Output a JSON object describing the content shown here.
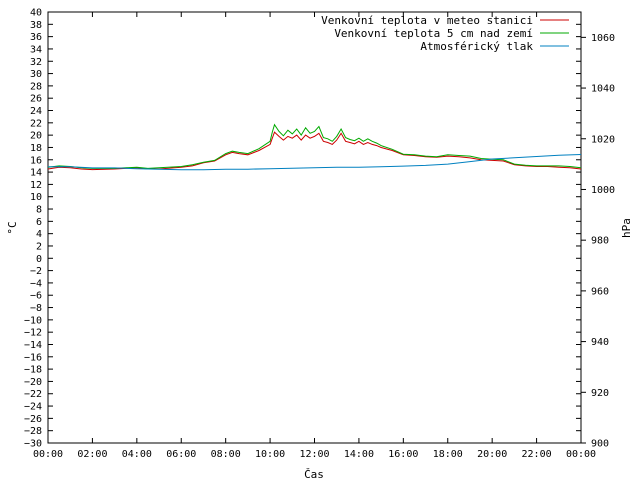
{
  "chart_data": {
    "type": "line",
    "title": "",
    "xlabel": "Čas",
    "ylabel": "°C",
    "y2label": "hPa",
    "x_ticks": [
      "00:00",
      "02:00",
      "04:00",
      "06:00",
      "08:00",
      "10:00",
      "12:00",
      "14:00",
      "16:00",
      "18:00",
      "20:00",
      "22:00",
      "00:00"
    ],
    "xlim_hours": [
      0,
      24
    ],
    "ylim": [
      -30,
      40
    ],
    "y_tick_step": 2,
    "y2lim": [
      900,
      1070
    ],
    "y2_ticks": [
      900,
      920,
      940,
      960,
      980,
      1000,
      1020,
      1040,
      1060
    ],
    "grid": false,
    "legend_position": "top-right",
    "series": [
      {
        "name": "Venkovní teplota v meteo stanici",
        "color": "#cc0000",
        "axis": "left",
        "x": [
          0,
          0.5,
          1,
          1.5,
          2,
          3,
          4,
          4.5,
          5,
          6,
          6.5,
          7,
          7.5,
          8,
          8.3,
          8.6,
          9,
          9.5,
          10,
          10.1,
          10.2,
          10.4,
          10.6,
          10.8,
          11,
          11.2,
          11.4,
          11.6,
          11.8,
          12,
          12.2,
          12.4,
          12.6,
          12.8,
          13,
          13.2,
          13.4,
          13.6,
          13.8,
          14,
          14.2,
          14.4,
          14.6,
          14.8,
          15,
          15.5,
          16,
          16.5,
          17,
          17.5,
          18,
          18.5,
          19,
          19.5,
          20,
          20.5,
          21,
          21.5,
          22,
          22.5,
          23,
          23.5,
          24
        ],
        "y": [
          14.5,
          14.8,
          14.7,
          14.5,
          14.4,
          14.5,
          14.7,
          14.5,
          14.5,
          14.8,
          15.0,
          15.5,
          15.8,
          16.8,
          17.2,
          17.0,
          16.8,
          17.5,
          18.5,
          19.5,
          20.5,
          19.8,
          19.2,
          19.8,
          19.5,
          20.0,
          19.2,
          20.0,
          19.5,
          19.8,
          20.3,
          19.0,
          18.8,
          18.5,
          19.2,
          20.3,
          19.0,
          18.8,
          18.6,
          19.0,
          18.5,
          18.8,
          18.5,
          18.3,
          18.0,
          17.5,
          16.8,
          16.7,
          16.5,
          16.4,
          16.6,
          16.5,
          16.3,
          16.0,
          15.9,
          15.8,
          15.2,
          15.0,
          14.9,
          14.9,
          14.8,
          14.7,
          14.5
        ]
      },
      {
        "name": "Venkovní teplota 5 cm nad zemí",
        "color": "#00aa00",
        "axis": "left",
        "x": [
          0,
          0.5,
          1,
          1.5,
          2,
          3,
          4,
          4.5,
          5,
          6,
          6.5,
          7,
          7.5,
          8,
          8.3,
          8.6,
          9,
          9.5,
          10,
          10.1,
          10.2,
          10.4,
          10.6,
          10.8,
          11,
          11.2,
          11.4,
          11.6,
          11.8,
          12,
          12.2,
          12.4,
          12.6,
          12.8,
          13,
          13.2,
          13.4,
          13.6,
          13.8,
          14,
          14.2,
          14.4,
          14.6,
          14.8,
          15,
          15.5,
          16,
          16.5,
          17,
          17.5,
          18,
          18.5,
          19,
          19.5,
          20,
          20.5,
          21,
          21.5,
          22,
          22.5,
          23,
          23.5,
          24
        ],
        "y": [
          14.8,
          15.0,
          14.9,
          14.7,
          14.6,
          14.6,
          14.8,
          14.6,
          14.7,
          14.9,
          15.2,
          15.6,
          15.9,
          17.0,
          17.4,
          17.2,
          17.0,
          17.8,
          19.0,
          20.5,
          21.7,
          20.6,
          19.9,
          20.8,
          20.2,
          21.0,
          20.0,
          21.2,
          20.3,
          20.6,
          21.4,
          19.6,
          19.4,
          19.0,
          19.8,
          21.0,
          19.6,
          19.3,
          19.1,
          19.5,
          19.0,
          19.4,
          19.0,
          18.7,
          18.3,
          17.7,
          16.9,
          16.8,
          16.6,
          16.5,
          16.8,
          16.7,
          16.6,
          16.2,
          16.1,
          16.0,
          15.3,
          15.1,
          15.0,
          15.0,
          15.0,
          14.9,
          14.7
        ]
      },
      {
        "name": "Atmosférický tlak",
        "color": "#0080c0",
        "axis": "right",
        "x": [
          0,
          1,
          2,
          3,
          4,
          5,
          6,
          7,
          8,
          9,
          10,
          11,
          12,
          13,
          14,
          15,
          16,
          17,
          18,
          19,
          20,
          21,
          22,
          23,
          24
        ],
        "y": [
          1009,
          1009,
          1008.5,
          1008.5,
          1008.2,
          1008,
          1007.8,
          1007.8,
          1008,
          1008,
          1008.2,
          1008.4,
          1008.6,
          1008.8,
          1008.8,
          1009,
          1009.2,
          1009.5,
          1010,
          1011,
          1012,
          1012.5,
          1013,
          1013.5,
          1013.8
        ]
      }
    ]
  }
}
